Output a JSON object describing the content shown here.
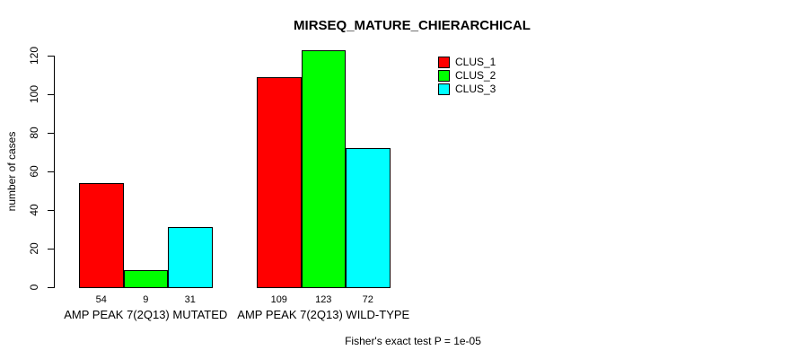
{
  "title": "MIRSEQ_MATURE_CHIERARCHICAL",
  "footer": "Fisher's exact test P = 1e-05",
  "colors": {
    "background": "#FFFFFF",
    "axis": "#000000",
    "text": "#000000",
    "clus_1": "#FF0000",
    "clus_2": "#00FF00",
    "clus_3": "#00FFFF"
  },
  "chart_data": {
    "type": "bar",
    "title": "MIRSEQ_MATURE_CHIERARCHICAL",
    "xlabel": "",
    "ylabel": "number of cases",
    "ylim": [
      0,
      120
    ],
    "yticks": [
      0,
      20,
      40,
      60,
      80,
      100,
      120
    ],
    "grid": false,
    "legend_position": "top-right",
    "categories": [
      "AMP PEAK 7(2Q13) MUTATED",
      "AMP PEAK 7(2Q13) WILD-TYPE"
    ],
    "series": [
      {
        "name": "CLUS_1",
        "color": "#FF0000",
        "values": [
          54,
          109
        ]
      },
      {
        "name": "CLUS_2",
        "color": "#00FF00",
        "values": [
          9,
          123
        ]
      },
      {
        "name": "CLUS_3",
        "color": "#00FFFF",
        "values": [
          31,
          72
        ]
      }
    ],
    "bar_value_labels": [
      [
        54,
        9,
        31
      ],
      [
        109,
        123,
        72
      ]
    ],
    "annotation": "Fisher's exact test P = 1e-05"
  }
}
